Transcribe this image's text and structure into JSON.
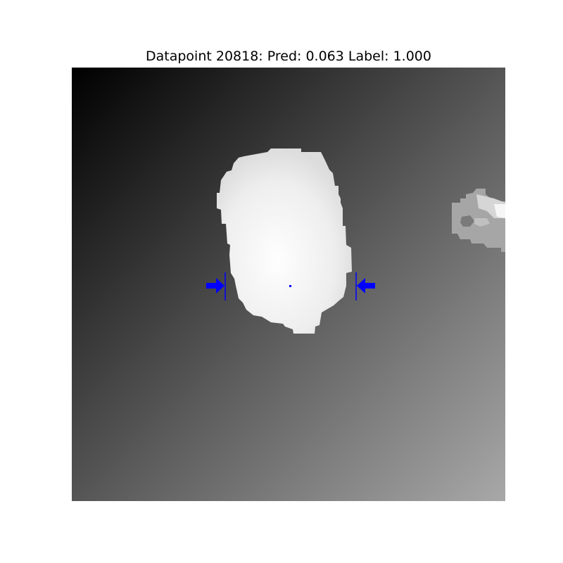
{
  "figure": {
    "title": "Datapoint 20818: Pred: 0.063 Label: 1.000"
  },
  "image": {
    "description_colors": {
      "background_dark": "#000000",
      "background_light": "#a8a8a8",
      "object_fill": "#f4f4f4",
      "object_edge": "#dedede",
      "side_object": "#b4b4b4",
      "marker_color": "#0000ff"
    },
    "grasp_marker": {
      "left_arrow_icon": "right-arrow",
      "right_arrow_icon": "left-arrow",
      "center_point_icon": "dot"
    }
  }
}
